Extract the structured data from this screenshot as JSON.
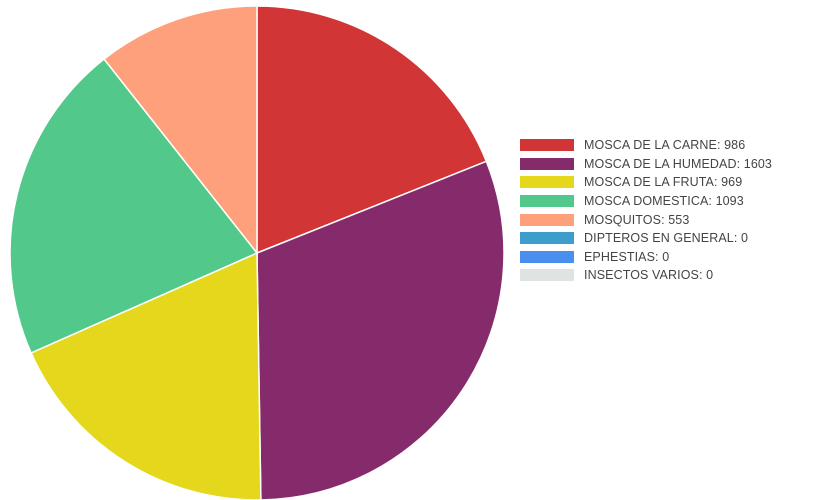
{
  "chart_data": {
    "type": "pie",
    "title": "",
    "legend_position": "right",
    "slices": [
      {
        "name": "MOSCA DE LA CARNE",
        "value": 986,
        "color": "#d23535",
        "label": "MOSCA DE LA CARNE: 986"
      },
      {
        "name": "MOSCA DE LA HUMEDAD",
        "value": 1603,
        "color": "#852a6b",
        "label": "MOSCA DE LA HUMEDAD: 1603"
      },
      {
        "name": "MOSCA DE LA FRUTA",
        "value": 969,
        "color": "#e5d81c",
        "label": "MOSCA DE LA FRUTA: 969"
      },
      {
        "name": "MOSCA DOMESTICA",
        "value": 1093,
        "color": "#52c98a",
        "label": "MOSCA DOMESTICA: 1093"
      },
      {
        "name": "MOSQUITOS",
        "value": 553,
        "color": "#fea07c",
        "label": "MOSQUITOS: 553"
      },
      {
        "name": "DIPTEROS EN GENERAL",
        "value": 0,
        "color": "#3d9ecd",
        "label": "DIPTEROS EN GENERAL: 0"
      },
      {
        "name": "EPHESTIAS",
        "value": 0,
        "color": "#4a8ef0",
        "label": "EPHESTIAS: 0"
      },
      {
        "name": "INSECTOS VARIOS",
        "value": 0,
        "color": "#dfe3e1",
        "label": "INSECTOS VARIOS: 0"
      }
    ]
  }
}
